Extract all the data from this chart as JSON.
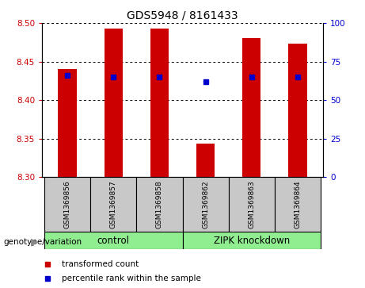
{
  "title": "GDS5948 / 8161433",
  "samples": [
    "GSM1369856",
    "GSM1369857",
    "GSM1369858",
    "GSM1369862",
    "GSM1369863",
    "GSM1369864"
  ],
  "bar_values": [
    8.44,
    8.493,
    8.493,
    8.343,
    8.48,
    8.473
  ],
  "bar_bottom": 8.3,
  "percentile_values": [
    66,
    65,
    65,
    62,
    65,
    65
  ],
  "bar_color": "#cc0000",
  "percentile_color": "#0000cc",
  "ylim_left": [
    8.3,
    8.5
  ],
  "ylim_right": [
    0,
    100
  ],
  "yticks_left": [
    8.3,
    8.35,
    8.4,
    8.45,
    8.5
  ],
  "yticks_right": [
    0,
    25,
    50,
    75,
    100
  ],
  "group_label_text": "genotype/variation",
  "legend_bar_label": "transformed count",
  "legend_dot_label": "percentile rank within the sample",
  "axis_label_color_left": "#cc0000",
  "axis_label_color_right": "#0000cc",
  "group_box_color": "#c8c8c8",
  "group_green_color": "#90ee90",
  "title_fontsize": 10,
  "tick_fontsize": 7.5,
  "sample_fontsize": 6.5,
  "group_fontsize": 8.5,
  "legend_fontsize": 7.5
}
